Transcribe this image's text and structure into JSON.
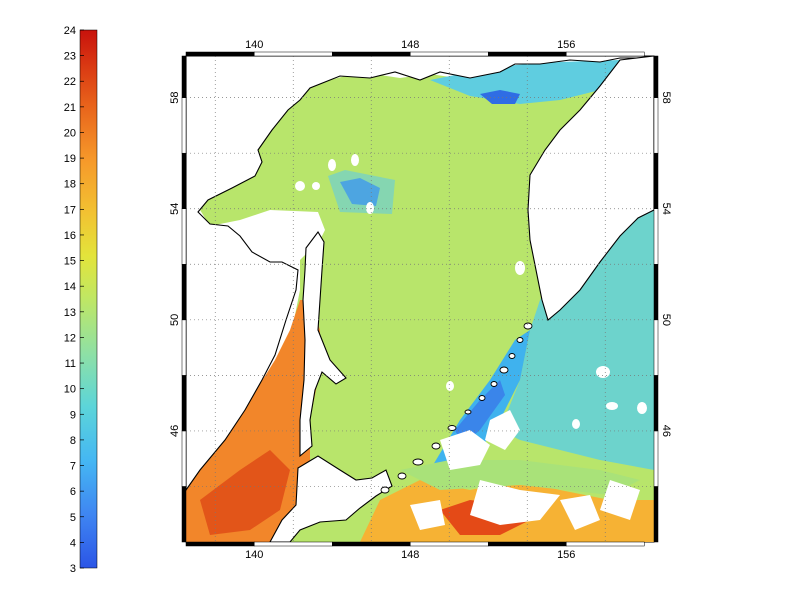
{
  "colorbar": {
    "ticks": [
      "3",
      "4",
      "5",
      "6",
      "7",
      "8",
      "9",
      "10",
      "11",
      "12",
      "13",
      "14",
      "15",
      "16",
      "17",
      "18",
      "19",
      "20",
      "21",
      "22",
      "23",
      "24"
    ],
    "min": 3,
    "max": 24,
    "colors": [
      "#2b55e6",
      "#3f7af0",
      "#4ea0f5",
      "#3fc0f2",
      "#5fd6d7",
      "#7fdcbc",
      "#9be298",
      "#b6e66a",
      "#cfe84a",
      "#e6e43a",
      "#f0cf35",
      "#f6b52f",
      "#f79a28",
      "#f27d1f",
      "#e9601a",
      "#df4414",
      "#d42b10",
      "#c8120c"
    ]
  },
  "map": {
    "lon_ticks": [
      "140",
      "148",
      "156"
    ],
    "lat_ticks": [
      "58",
      "54",
      "50",
      "46"
    ],
    "lon_range": [
      136.5,
      160.5
    ],
    "lat_range": [
      42.0,
      59.5
    ],
    "grid": true,
    "background": "#ffffff",
    "coastline_color": "#000000"
  }
}
